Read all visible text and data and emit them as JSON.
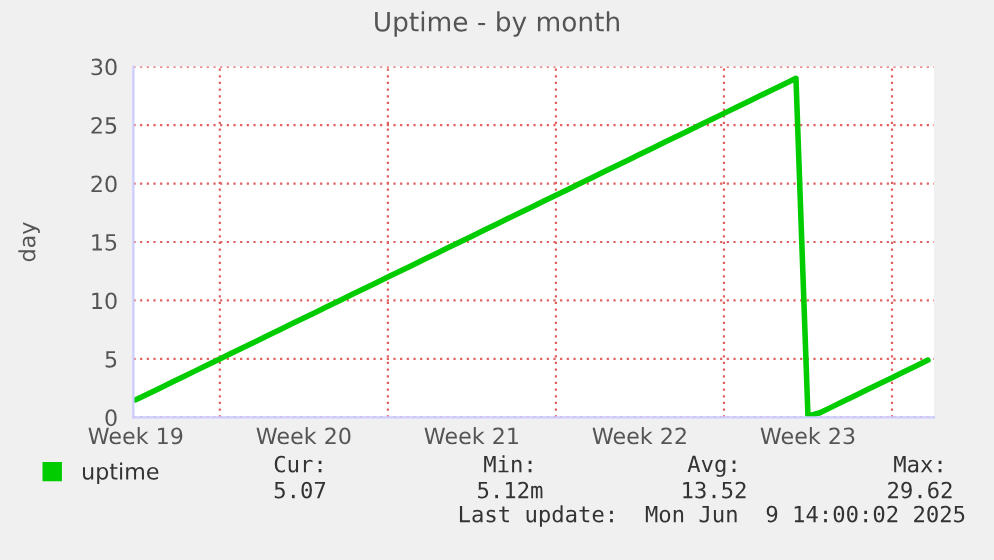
{
  "chart_data": {
    "type": "line",
    "title": "Uptime - by month",
    "ylabel": "day",
    "categories": [
      "Week 19",
      null,
      null,
      null,
      null,
      null,
      null,
      null,
      null,
      null,
      null,
      null,
      null,
      null,
      "Week 20",
      null,
      null,
      null,
      null,
      null,
      null,
      null,
      null,
      null,
      null,
      null,
      null,
      null,
      "Week 21",
      null,
      null,
      null,
      null,
      null,
      null,
      null,
      null,
      null,
      null,
      null,
      null,
      null,
      "Week 22",
      null,
      null,
      null,
      null,
      null,
      null,
      null,
      null,
      null,
      null,
      null,
      null,
      null,
      "Week 23",
      null,
      null,
      null,
      null,
      null,
      null,
      null,
      null,
      null,
      null
    ],
    "series": [
      {
        "name": "uptime",
        "color": "#00cc00",
        "values": [
          1.5,
          2,
          2.5,
          3,
          3.5,
          4,
          4.5,
          5,
          5.5,
          6,
          6.5,
          7,
          7.5,
          8,
          8.5,
          9,
          9.5,
          10,
          10.5,
          11,
          11.5,
          12,
          12.5,
          13,
          13.5,
          14,
          14.5,
          15,
          15.5,
          16,
          16.5,
          17,
          17.5,
          18,
          18.5,
          19,
          19.5,
          20,
          20.5,
          21,
          21.5,
          22,
          22.5,
          23,
          23.5,
          24,
          24.5,
          25,
          25.5,
          26,
          26.5,
          27,
          27.5,
          28,
          28.5,
          29,
          0.1,
          0.4,
          0.9,
          1.4,
          1.9,
          2.4,
          2.9,
          3.4,
          3.9,
          4.4,
          4.9
        ]
      }
    ],
    "ylim": [
      0,
      30
    ],
    "yticks": [
      0,
      5,
      10,
      15,
      20,
      25,
      30
    ],
    "grid": true,
    "legend": "bottom left",
    "annotations": [
      "Cur:",
      "5.07",
      "Min:",
      "5.12m",
      "Avg:",
      "13.52",
      "Max:",
      "29.62",
      "Last update:  Mon Jun  9 14:00:02 2025"
    ]
  }
}
